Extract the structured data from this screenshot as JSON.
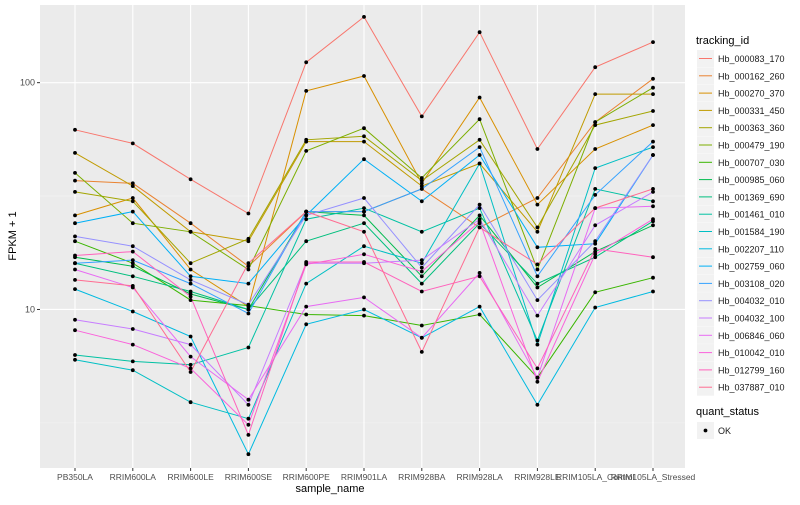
{
  "chart_data": {
    "type": "line",
    "title": "",
    "xlabel": "sample_name",
    "ylabel": "FPKM + 1",
    "y_scale": "log10",
    "ylim": [
      2.0,
      220
    ],
    "y_ticks": [
      10,
      100
    ],
    "y_tick_labels": [
      "10",
      "100"
    ],
    "grid": true,
    "legend_position": "right",
    "categories": [
      "PB350LA",
      "RRIM600LA",
      "RRIM600LE",
      "RRIM600SE",
      "RRIM600PE",
      "RRIM901LA",
      "RRIM928BA",
      "RRIM928LA",
      "RRIM928LE",
      "RRIM105LA_Control",
      "RRIM105LA_Stressed"
    ],
    "series": [
      {
        "name": "Hb_000083_170",
        "color": "#F8766D",
        "values": [
          62,
          54,
          37.5,
          26.5,
          123,
          195,
          71,
          167,
          51,
          117,
          151
        ]
      },
      {
        "name": "Hb_000162_260",
        "color": "#EA8331",
        "values": [
          37,
          36,
          24,
          15.5,
          27,
          27,
          34,
          23,
          31,
          67,
          104
        ]
      },
      {
        "name": "Hb_000270_370",
        "color": "#D89000",
        "values": [
          26,
          31,
          15,
          10.3,
          92,
          107,
          36,
          86,
          29,
          51,
          65
        ]
      },
      {
        "name": "Hb_000331_450",
        "color": "#C09B00",
        "values": [
          49,
          35,
          22,
          20,
          55,
          55,
          35,
          44,
          22,
          89,
          89
        ]
      },
      {
        "name": "Hb_000363_360",
        "color": "#A3A500",
        "values": [
          33,
          30,
          16,
          20.5,
          56,
          58,
          37,
          56,
          23,
          65,
          75
        ]
      },
      {
        "name": "Hb_000479_190",
        "color": "#7CAE00",
        "values": [
          40,
          24,
          22,
          15,
          50,
          63,
          38,
          69,
          15,
          67,
          95
        ]
      },
      {
        "name": "Hb_000707_030",
        "color": "#39B600",
        "values": [
          20,
          16,
          11,
          10.4,
          9.5,
          9.4,
          8.5,
          9.5,
          5.0,
          11.9,
          13.8
        ]
      },
      {
        "name": "Hb_000985_060",
        "color": "#00BB4E",
        "values": [
          17,
          15.5,
          11.7,
          10,
          27,
          26,
          14,
          26,
          12.5,
          18,
          23.5
        ]
      },
      {
        "name": "Hb_001369_690",
        "color": "#00BF7D",
        "values": [
          16,
          14,
          12,
          10,
          20,
          24,
          13,
          24,
          13,
          17,
          24.5
        ]
      },
      {
        "name": "Hb_001461_010",
        "color": "#00C1A3",
        "values": [
          6.3,
          5.9,
          5.7,
          6.8,
          25,
          28,
          22,
          28,
          7.3,
          34,
          30
        ]
      },
      {
        "name": "Hb_001584_190",
        "color": "#00BFC4",
        "values": [
          6.0,
          5.4,
          3.9,
          3.3,
          13,
          19,
          16,
          44,
          7.0,
          42,
          52
        ]
      },
      {
        "name": "Hb_002207_110",
        "color": "#00BAE0",
        "values": [
          12.3,
          9.8,
          7.6,
          2.3,
          8.6,
          10,
          7.5,
          10.3,
          3.8,
          10.2,
          12
        ]
      },
      {
        "name": "Hb_002759_060",
        "color": "#00B0F6",
        "values": [
          24,
          27,
          14,
          13,
          26,
          46,
          30,
          48,
          18.8,
          19.5,
          48
        ]
      },
      {
        "name": "Hb_003108_020",
        "color": "#35A2FF",
        "values": [
          16,
          16.5,
          13,
          9.6,
          27,
          27,
          34,
          52,
          14,
          32,
          55
        ]
      },
      {
        "name": "Hb_004032_010",
        "color": "#9590FF",
        "values": [
          21,
          19,
          13.5,
          10.5,
          26,
          31,
          15.3,
          29,
          11,
          20,
          48
        ]
      },
      {
        "name": "Hb_004032_100",
        "color": "#C77CFF",
        "values": [
          9.0,
          8.2,
          7.0,
          3.8,
          16,
          16,
          16.5,
          25,
          9.4,
          23.5,
          33
        ]
      },
      {
        "name": "Hb_006846_060",
        "color": "#E76BF3",
        "values": [
          15,
          12.5,
          6.2,
          4.0,
          10.3,
          11.3,
          7.5,
          14.5,
          5.0,
          28,
          28.5
        ]
      },
      {
        "name": "Hb_010042_010",
        "color": "#FA62DB",
        "values": [
          8.1,
          7.0,
          5.5,
          3.1,
          15.8,
          17.5,
          14.7,
          24.4,
          4.8,
          17.5,
          25
        ]
      },
      {
        "name": "Hb_012799_160",
        "color": "#FF62BC",
        "values": [
          17.3,
          18,
          11.4,
          2.8,
          16.2,
          16.2,
          12,
          14,
          5.5,
          18.5,
          17
        ]
      },
      {
        "name": "Hb_037887_010",
        "color": "#FF6C91",
        "values": [
          13.5,
          12.7,
          5.3,
          16,
          27,
          22,
          6.5,
          23,
          15.8,
          28,
          34
        ]
      }
    ]
  },
  "legend": {
    "title": "tracking_id",
    "shape_title": "quant_status",
    "shape_label": "OK"
  }
}
